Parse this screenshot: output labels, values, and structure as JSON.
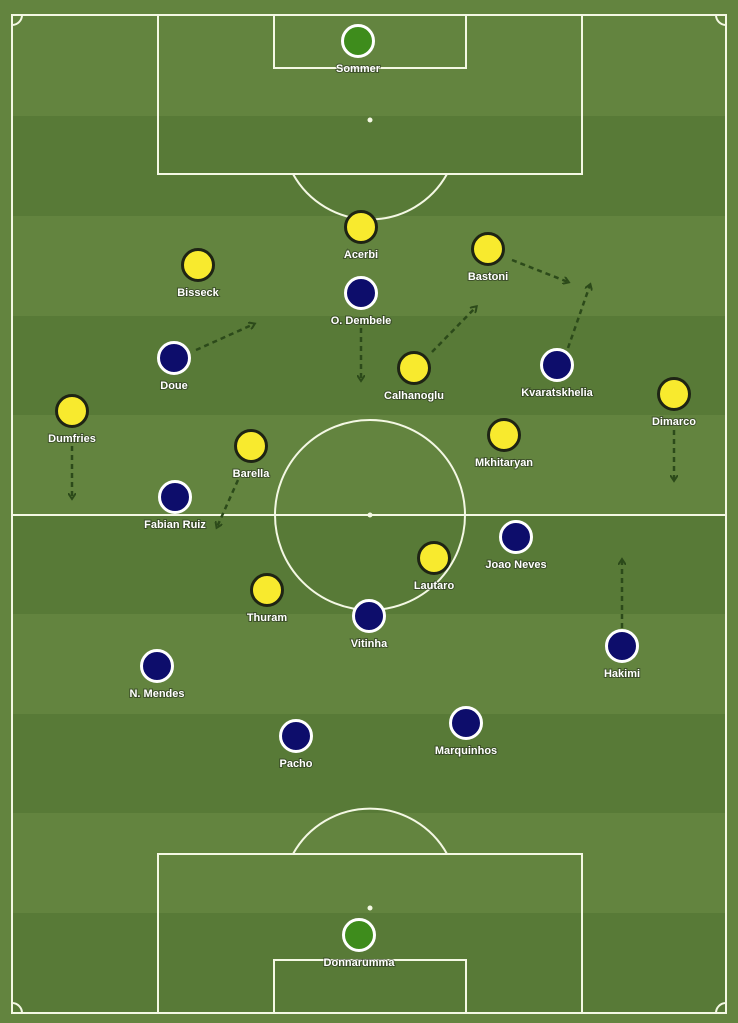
{
  "colors": {
    "pitch_light": "#63843f",
    "pitch_dark": "#587a37",
    "lines": "#f4f8e4",
    "team_yellow": "#f8ea2e",
    "team_navy": "#0d0d6b",
    "goalkeeper": "#3e8c1c",
    "arrow": "#2c4a1a"
  },
  "players": [
    {
      "name": "Sommer",
      "team": "goalkeeper",
      "role": "keeper-top"
    },
    {
      "name": "Acerbi",
      "team": "yellow"
    },
    {
      "name": "Bisseck",
      "team": "yellow"
    },
    {
      "name": "Bastoni",
      "team": "yellow"
    },
    {
      "name": "O. Dembele",
      "team": "navy"
    },
    {
      "name": "Doue",
      "team": "navy"
    },
    {
      "name": "Calhanoglu",
      "team": "yellow"
    },
    {
      "name": "Kvaratskhelia",
      "team": "navy"
    },
    {
      "name": "Dimarco",
      "team": "yellow"
    },
    {
      "name": "Dumfries",
      "team": "yellow"
    },
    {
      "name": "Barella",
      "team": "yellow"
    },
    {
      "name": "Mkhitaryan",
      "team": "yellow"
    },
    {
      "name": "Fabian Ruiz",
      "team": "navy"
    },
    {
      "name": "Joao Neves",
      "team": "navy"
    },
    {
      "name": "Lautaro",
      "team": "yellow"
    },
    {
      "name": "Thuram",
      "team": "yellow"
    },
    {
      "name": "Vitinha",
      "team": "navy"
    },
    {
      "name": "N. Mendes",
      "team": "navy"
    },
    {
      "name": "Hakimi",
      "team": "navy"
    },
    {
      "name": "Pacho",
      "team": "navy"
    },
    {
      "name": "Marquinhos",
      "team": "navy"
    },
    {
      "name": "Donnarumma",
      "team": "goalkeeper",
      "role": "keeper-bottom"
    }
  ],
  "movement_arrows": [
    {
      "player": "Doue"
    },
    {
      "player": "O. Dembele"
    },
    {
      "player": "Calhanoglu"
    },
    {
      "player": "Bastoni"
    },
    {
      "player": "Kvaratskhelia"
    },
    {
      "player": "Dimarco"
    },
    {
      "player": "Dumfries"
    },
    {
      "player": "Barella"
    },
    {
      "player": "Hakimi"
    }
  ]
}
